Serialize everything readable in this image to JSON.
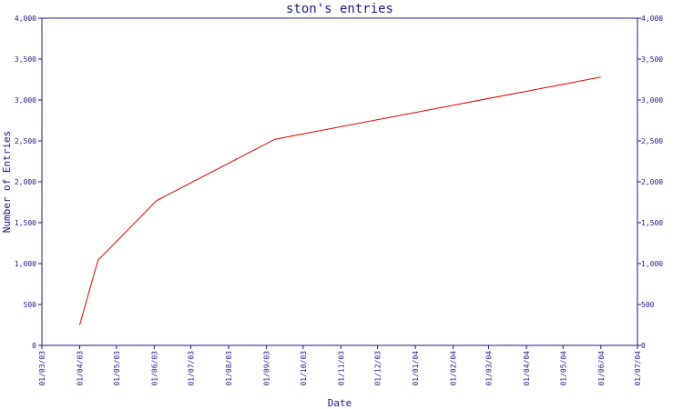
{
  "chart_data": {
    "type": "line",
    "title": "ston's entries",
    "xlabel": "Date",
    "ylabel": "Number of Entries",
    "x_ticks": [
      "01/03/03",
      "01/04/03",
      "01/05/03",
      "01/06/03",
      "01/07/03",
      "01/08/03",
      "01/09/03",
      "01/10/03",
      "01/11/03",
      "01/12/03",
      "01/01/04",
      "01/02/04",
      "01/03/04",
      "01/04/04",
      "01/05/04",
      "01/06/04",
      "01/07/04"
    ],
    "y_ticks": [
      "0",
      "500",
      "1,000",
      "1,500",
      "2,000",
      "2,500",
      "3,000",
      "3,500",
      "4,000"
    ],
    "ylim": [
      0,
      4000
    ],
    "xlim": [
      "2003-03-01",
      "2004-07-01"
    ],
    "grid": false,
    "series": [
      {
        "color": "#dd0000",
        "points": [
          {
            "x": "2003-04-01",
            "y": 250
          },
          {
            "x": "2003-04-16",
            "y": 1040
          },
          {
            "x": "2003-06-03",
            "y": 1770
          },
          {
            "x": "2003-09-08",
            "y": 2520
          },
          {
            "x": "2004-06-01",
            "y": 3280
          }
        ]
      }
    ]
  }
}
